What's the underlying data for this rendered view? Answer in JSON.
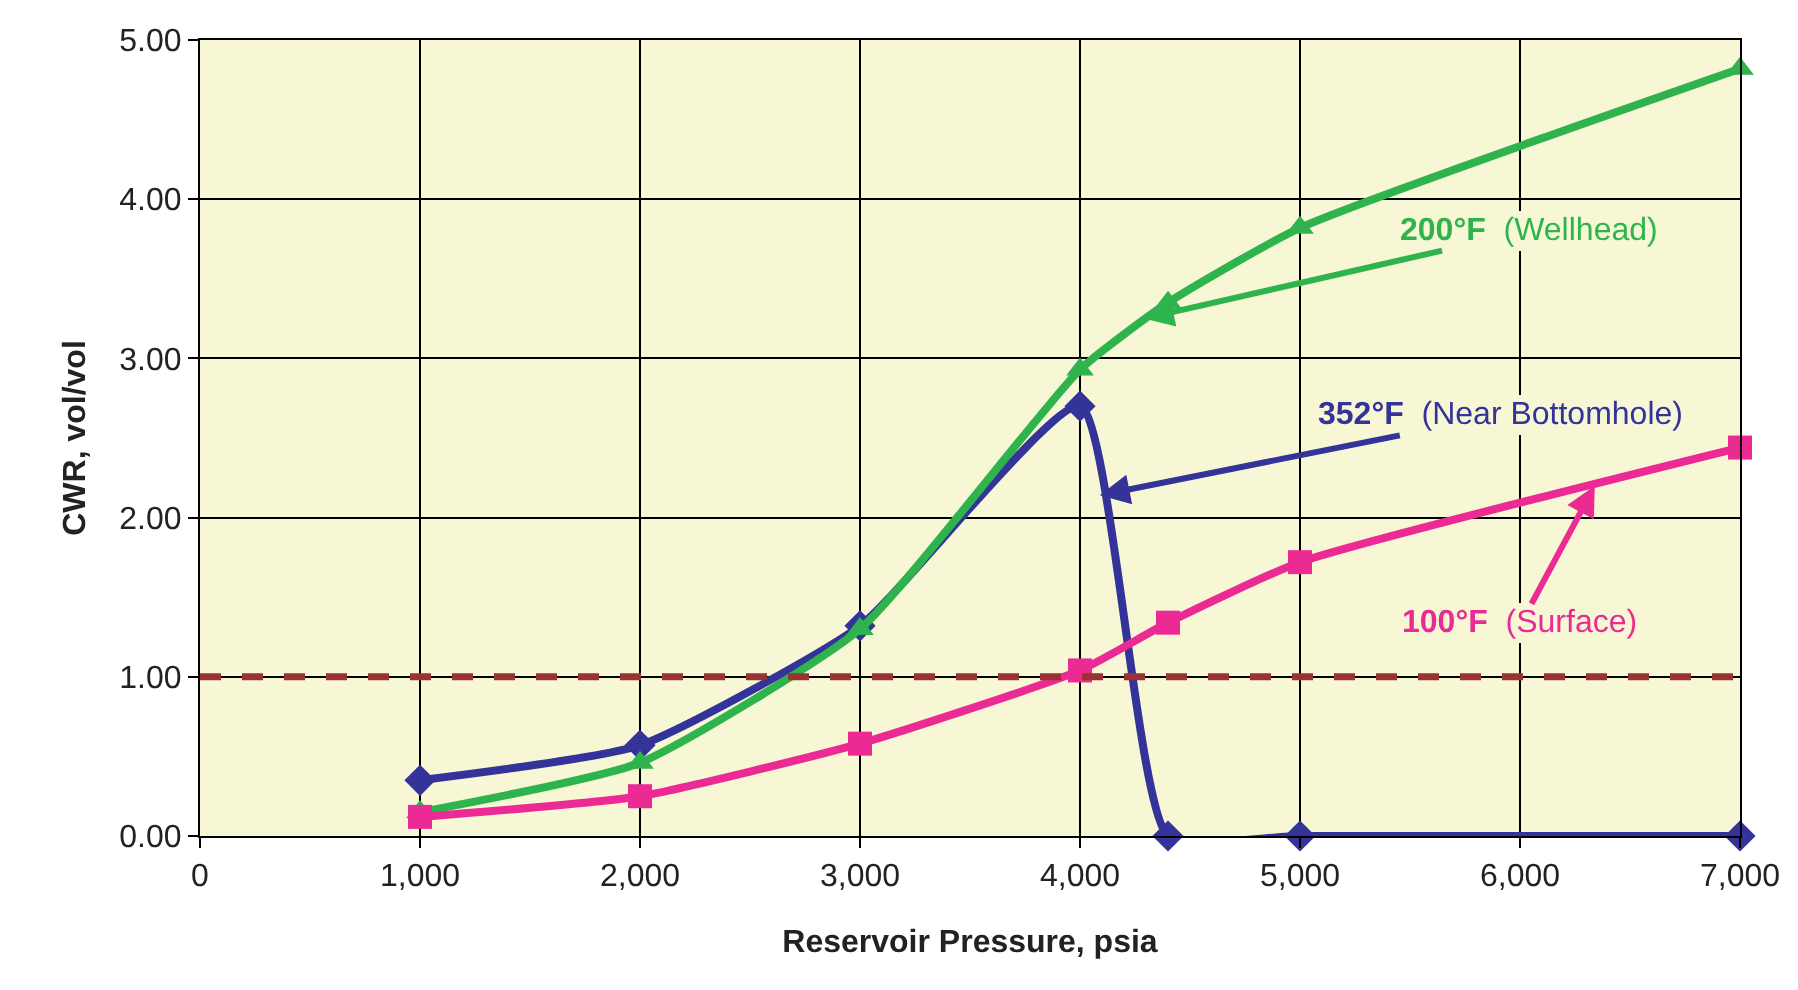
{
  "chart_data": {
    "type": "line",
    "xlabel": "Reservoir Pressure, psia",
    "ylabel": "CWR, vol/vol",
    "x": [
      1000,
      2000,
      3000,
      4000,
      4400,
      5000,
      7000
    ],
    "series": [
      {
        "color": "#333399",
        "marker": "diamond",
        "values": [
          0.35,
          0.57,
          1.32,
          2.7,
          0.0,
          0.0,
          0.0
        ]
      },
      {
        "color": "#2fb34c",
        "marker": "triangle",
        "values": [
          0.15,
          0.46,
          1.3,
          2.93,
          3.35,
          3.82,
          4.82
        ]
      },
      {
        "color": "#ec2a94",
        "marker": "square",
        "values": [
          0.12,
          0.25,
          0.58,
          1.04,
          1.34,
          1.72,
          2.44
        ]
      }
    ],
    "xlim": [
      0,
      7000
    ],
    "xticks": [
      {
        "value": 0,
        "label": "0"
      },
      {
        "value": 1000,
        "label": "1,000"
      },
      {
        "value": 2000,
        "label": "2,000"
      },
      {
        "value": 3000,
        "label": "3,000"
      },
      {
        "value": 4000,
        "label": "4,000"
      },
      {
        "value": 5000,
        "label": "5,000"
      },
      {
        "value": 6000,
        "label": "6,000"
      },
      {
        "value": 7000,
        "label": "7,000"
      }
    ],
    "ylim": [
      0,
      5
    ],
    "yticks": [
      {
        "value": 0,
        "label": "0.00"
      },
      {
        "value": 1,
        "label": "1.00"
      },
      {
        "value": 2,
        "label": "2.00"
      },
      {
        "value": 3,
        "label": "3.00"
      },
      {
        "value": 4,
        "label": "4.00"
      },
      {
        "value": 5,
        "label": "5.00"
      }
    ],
    "grid": true,
    "line_style": "solid",
    "ref_lines": [
      {
        "axis": "y",
        "value": 1,
        "color": "#993333",
        "line_style": "dashed"
      }
    ],
    "annotations": [
      {
        "text": "352°F (Near Bottomhole)",
        "x": 4090,
        "y": 2.14
      },
      {
        "text": "200°F (Wellhead)",
        "x": 4290,
        "y": 3.25
      },
      {
        "text": "100°F (Surface)",
        "x": 6340,
        "y": 2.2
      }
    ]
  }
}
